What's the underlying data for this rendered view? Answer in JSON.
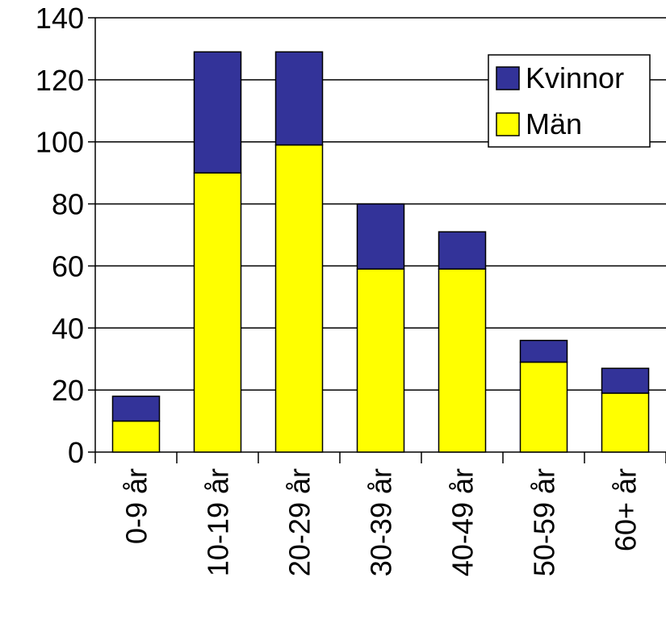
{
  "chart_data": {
    "type": "stacked_bar",
    "categories": [
      "0-9 år",
      "10-19 år",
      "20-29 år",
      "30-39 år",
      "40-49 år",
      "50-59 år",
      "60+ år"
    ],
    "series": [
      {
        "name": "Män",
        "color": "#ffff00",
        "values": [
          10,
          90,
          99,
          59,
          59,
          29,
          19
        ]
      },
      {
        "name": "Kvinnor",
        "color": "#333399",
        "values": [
          8,
          39,
          30,
          21,
          12,
          7,
          8
        ]
      }
    ],
    "ylim": [
      0,
      140
    ],
    "yticks": [
      0,
      20,
      40,
      60,
      80,
      100,
      120,
      140
    ],
    "grid": true,
    "legend": "upper right"
  }
}
